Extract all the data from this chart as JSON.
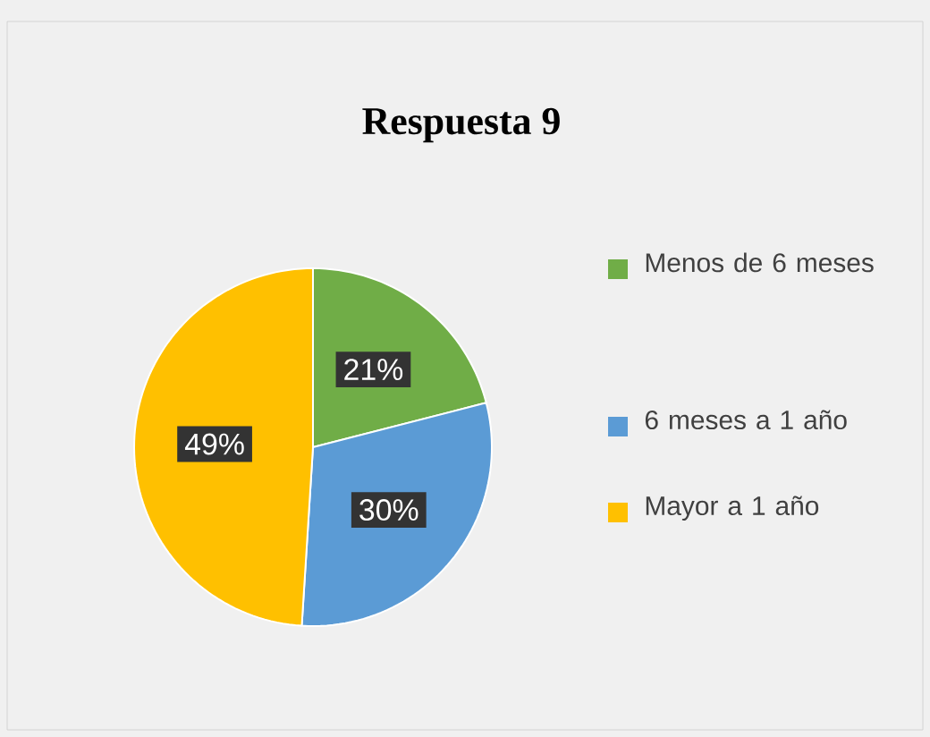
{
  "chart_data": {
    "type": "pie",
    "title": "Respuesta 9",
    "categories": [
      "Menos de 6 meses",
      "6 meses a 1 año",
      "Mayor a 1 año"
    ],
    "values": [
      21,
      30,
      49
    ],
    "value_labels": [
      "21%",
      "30%",
      "49%"
    ],
    "colors": [
      "#70ad47",
      "#5b9bd5",
      "#ffc000"
    ],
    "legend": "right"
  }
}
